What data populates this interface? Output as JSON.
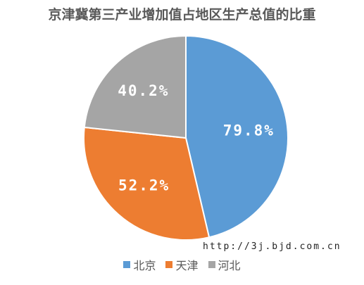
{
  "chart_data": {
    "type": "pie",
    "title": "京津冀第三产业增加值占地区生产总值的比重",
    "slices": [
      {
        "name": "北京",
        "label": "79.8%",
        "value": 79.8,
        "color": "#5B9BD5"
      },
      {
        "name": "天津",
        "label": "52.2%",
        "value": 52.2,
        "color": "#ED7D31"
      },
      {
        "name": "河北",
        "label": "40.2%",
        "value": 40.2,
        "color": "#A5A5A5"
      }
    ],
    "start_angle_deg": 0,
    "direction": "clockwise",
    "legend_position": "bottom"
  },
  "watermark": "http://3j.bjd.com.cn"
}
